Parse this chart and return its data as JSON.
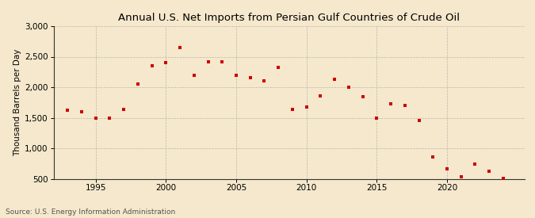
{
  "title": "Annual U.S. Net Imports from Persian Gulf Countries of Crude Oil",
  "ylabel": "Thousand Barrels per Day",
  "source": "Source: U.S. Energy Information Administration",
  "background_color": "#f5e8cc",
  "marker_color": "#cc0000",
  "years": [
    1993,
    1994,
    1995,
    1996,
    1997,
    1998,
    1999,
    2000,
    2001,
    2002,
    2003,
    2004,
    2005,
    2006,
    2007,
    2008,
    2009,
    2010,
    2011,
    2012,
    2013,
    2014,
    2015,
    2016,
    2017,
    2018,
    2019,
    2020,
    2021,
    2022,
    2023,
    2024
  ],
  "values": [
    1620,
    1600,
    1490,
    1500,
    1630,
    2050,
    2350,
    2400,
    2650,
    2200,
    2420,
    2420,
    2200,
    2150,
    2110,
    2330,
    1640,
    1670,
    1860,
    2130,
    2000,
    1840,
    1500,
    1730,
    1700,
    1450,
    860,
    660,
    530,
    740,
    620,
    510
  ],
  "ylim": [
    500,
    3000
  ],
  "yticks": [
    500,
    1000,
    1500,
    2000,
    2500,
    3000
  ],
  "xlim": [
    1992.0,
    2025.5
  ],
  "xticks": [
    1995,
    2000,
    2005,
    2010,
    2015,
    2020
  ],
  "grid_color": "#aaaaaa",
  "title_fontsize": 9.5,
  "label_fontsize": 7.5,
  "tick_fontsize": 7.5,
  "source_fontsize": 6.5
}
